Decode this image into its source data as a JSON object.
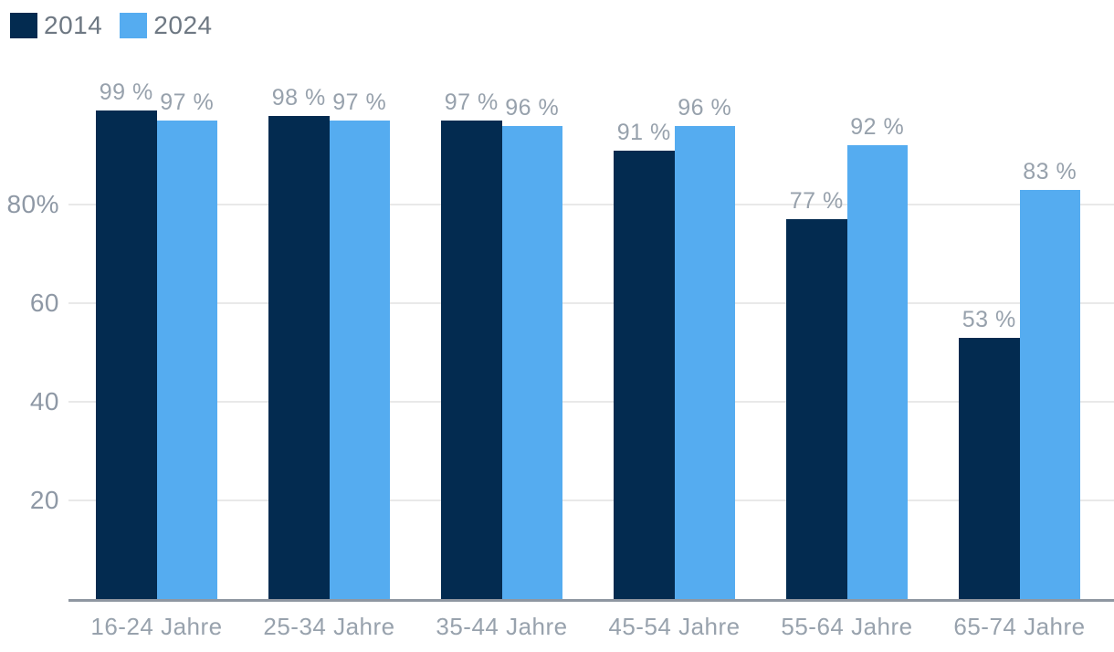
{
  "chart_data": {
    "type": "bar",
    "title": "",
    "xlabel": "",
    "ylabel": "",
    "unit": "%",
    "categories": [
      "16-24 Jahre",
      "25-34 Jahre",
      "35-44 Jahre",
      "45-54 Jahre",
      "55-64 Jahre",
      "65-74 Jahre"
    ],
    "series": [
      {
        "name": "2014",
        "color": "#032B50",
        "values": [
          99,
          98,
          97,
          91,
          77,
          53
        ],
        "data_labels": [
          "99 %",
          "98 %",
          "97 %",
          "91 %",
          "77 %",
          "53 %"
        ]
      },
      {
        "name": "2024",
        "color": "#55ACF0",
        "values": [
          97,
          97,
          96,
          96,
          92,
          83
        ],
        "data_labels": [
          "97 %",
          "97 %",
          "96 %",
          "96 %",
          "92 %",
          "83 %"
        ]
      }
    ],
    "ylim": [
      0,
      100
    ],
    "y_ticks": [
      {
        "value": 80,
        "label": "80%"
      },
      {
        "value": 60,
        "label": "60"
      },
      {
        "value": 40,
        "label": "40"
      },
      {
        "value": 20,
        "label": "20"
      }
    ],
    "grid": "horizontal",
    "legend_position": "top-left"
  },
  "style": {
    "background": "#FFFFFF",
    "gridline_color": "#E9E9E9",
    "axis_line_color": "#8F97A1",
    "y_tick_label_color": "#8E98A5",
    "data_label_color": "#97A1AC",
    "x_label_color": "#98A2AD",
    "legend_text_color": "#6E7883"
  }
}
